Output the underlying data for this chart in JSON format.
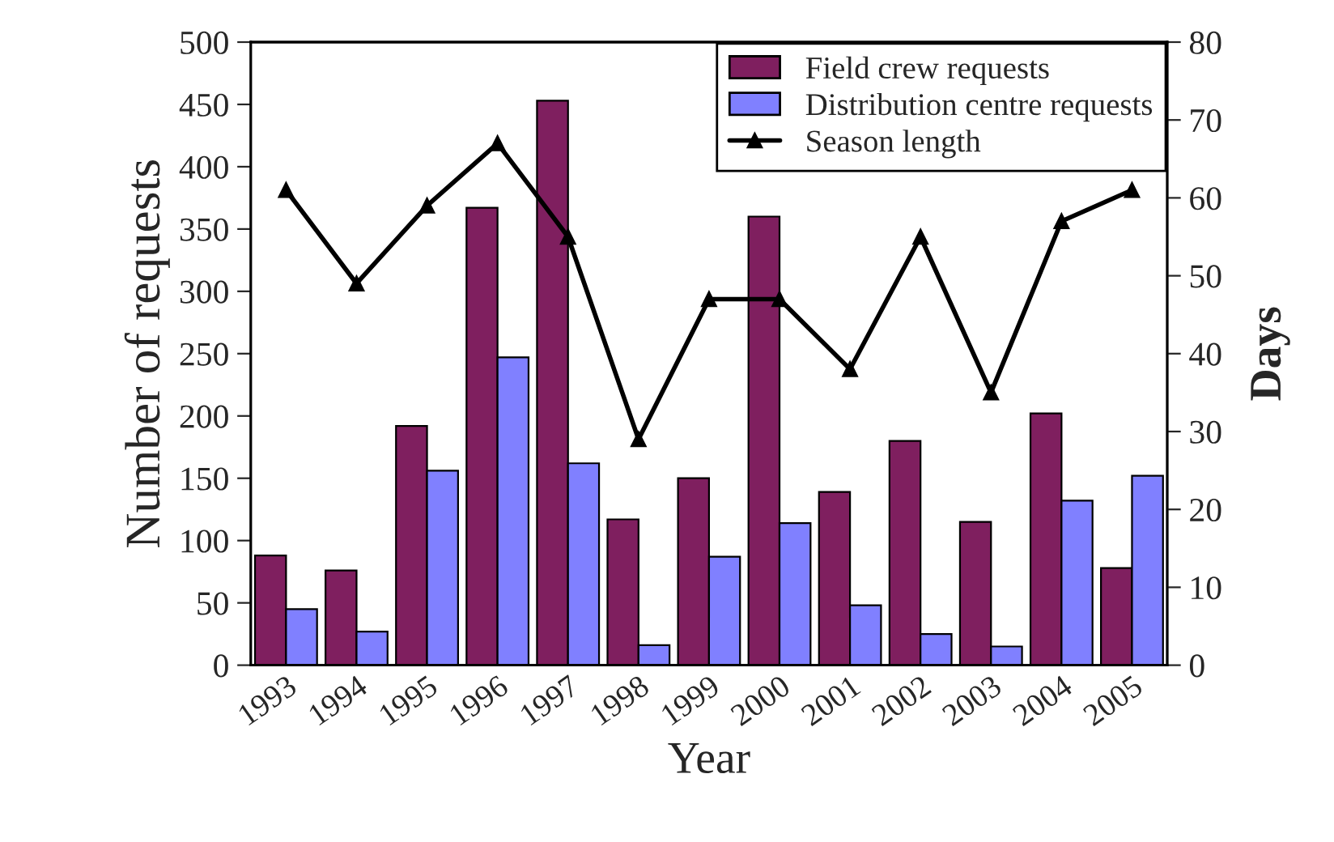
{
  "chart_data": {
    "type": "bar",
    "xlabel": "Year",
    "ylabel": "Number of requests",
    "y2label": "Days",
    "categories": [
      "1993",
      "1994",
      "1995",
      "1996",
      "1997",
      "1998",
      "1999",
      "2000",
      "2001",
      "2002",
      "2003",
      "2004",
      "2005"
    ],
    "series": [
      {
        "name": "Field crew requests",
        "color": "#7f1f5f",
        "values": [
          88,
          76,
          192,
          367,
          453,
          117,
          150,
          360,
          139,
          180,
          115,
          202,
          78
        ]
      },
      {
        "name": "Distribution centre requests",
        "color": "#8080ff",
        "values": [
          45,
          27,
          156,
          247,
          162,
          16,
          87,
          114,
          48,
          25,
          15,
          132,
          152
        ]
      },
      {
        "name": "Season length",
        "type": "line",
        "axis": "y2",
        "color": "#000000",
        "marker": "triangle",
        "line_style": "solid",
        "values": [
          61,
          49,
          59,
          67,
          55,
          29,
          47,
          47,
          38,
          55,
          35,
          57,
          61
        ]
      }
    ],
    "ylim": [
      0,
      500
    ],
    "yticks": [
      0,
      50,
      100,
      150,
      200,
      250,
      300,
      350,
      400,
      450,
      500
    ],
    "y2lim": [
      0,
      80
    ],
    "y2ticks": [
      0,
      10,
      20,
      30,
      40,
      50,
      60,
      70,
      80
    ],
    "grid": false,
    "legend": "top right"
  }
}
